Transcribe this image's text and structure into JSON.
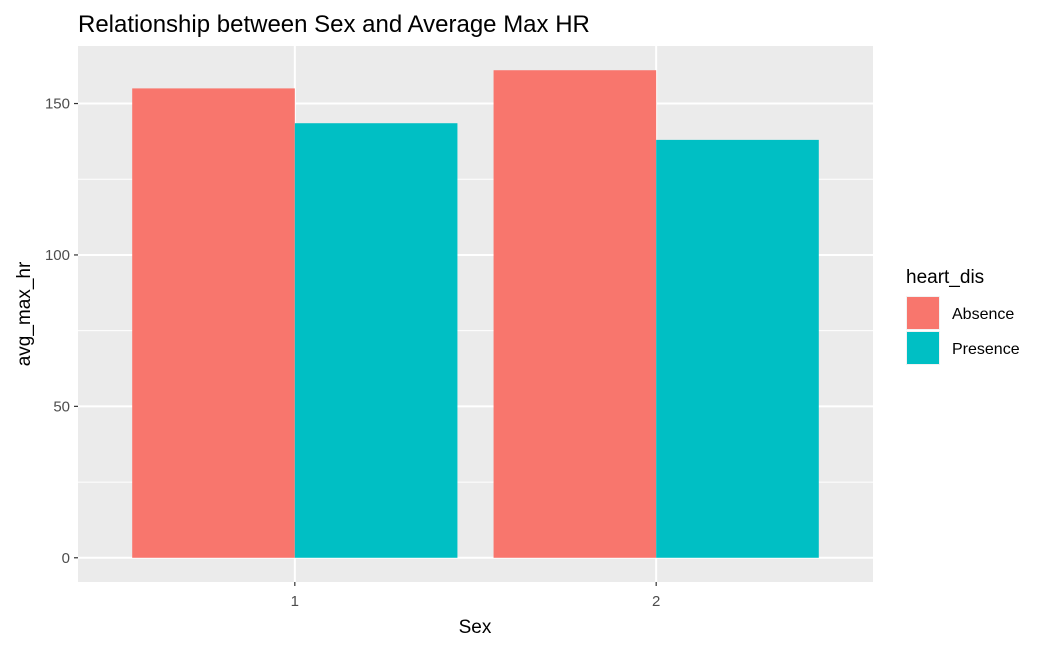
{
  "chart_data": {
    "type": "bar",
    "title": "Relationship between Sex and Average Max HR",
    "xlabel": "Sex",
    "ylabel": "avg_max_hr",
    "categories": [
      "1",
      "2"
    ],
    "series": [
      {
        "name": "Absence",
        "color": "#F8766D",
        "values": [
          155,
          161
        ]
      },
      {
        "name": "Presence",
        "color": "#00BFC4",
        "values": [
          143.5,
          138
        ]
      }
    ],
    "y_ticks": [
      0,
      50,
      100,
      150
    ],
    "y_tick_labels": [
      "0",
      "50",
      "100",
      "150"
    ],
    "ylim": [
      -8,
      169
    ],
    "grid": true,
    "legend": {
      "title": "heart_dis",
      "position": "right"
    },
    "panel_background": "#EBEBEB",
    "grid_color": "#FFFFFF"
  }
}
